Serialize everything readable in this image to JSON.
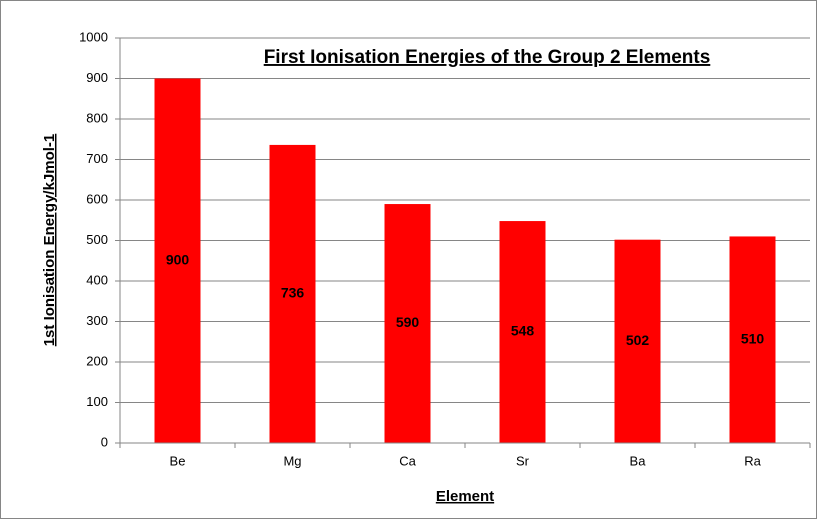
{
  "chart_data": {
    "type": "bar",
    "title": "First Ionisation Energies of the Group 2 Elements",
    "x_label": "Element",
    "y_label": "1st Ionisation Energy/kJmol-1",
    "categories": [
      "Be",
      "Mg",
      "Ca",
      "Sr",
      "Ba",
      "Ra"
    ],
    "values": [
      900,
      736,
      590,
      548,
      502,
      510
    ],
    "color": "#ff0000",
    "ylim": [
      0,
      1000
    ],
    "yticks": [
      0,
      100,
      200,
      300,
      400,
      500,
      600,
      700,
      800,
      900,
      1000
    ],
    "grid": true
  }
}
